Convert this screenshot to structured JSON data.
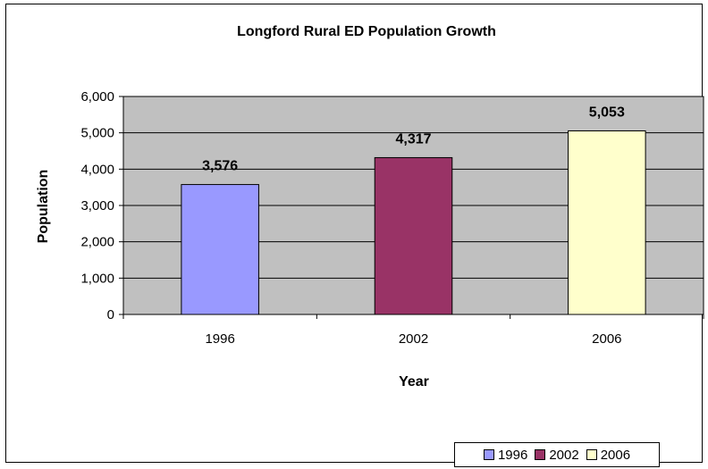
{
  "chart_data": {
    "type": "bar",
    "title": "Longford Rural ED Population Growth",
    "xlabel": "Year",
    "ylabel": "Population",
    "categories": [
      "1996",
      "2002",
      "2006"
    ],
    "values": [
      3576,
      4317,
      5053
    ],
    "data_labels": [
      "3,576",
      "4,317",
      "5,053"
    ],
    "y_ticks": [
      "0",
      "1,000",
      "2,000",
      "3,000",
      "4,000",
      "5,000",
      "6,000"
    ],
    "ylim": [
      0,
      6000
    ],
    "grid": true,
    "plot_background": "#c0c0c0",
    "colors": [
      "#9999ff",
      "#993366",
      "#ffffcc"
    ],
    "legend": {
      "position": "bottom-right",
      "entries": [
        "1996",
        "2002",
        "2006"
      ]
    }
  }
}
